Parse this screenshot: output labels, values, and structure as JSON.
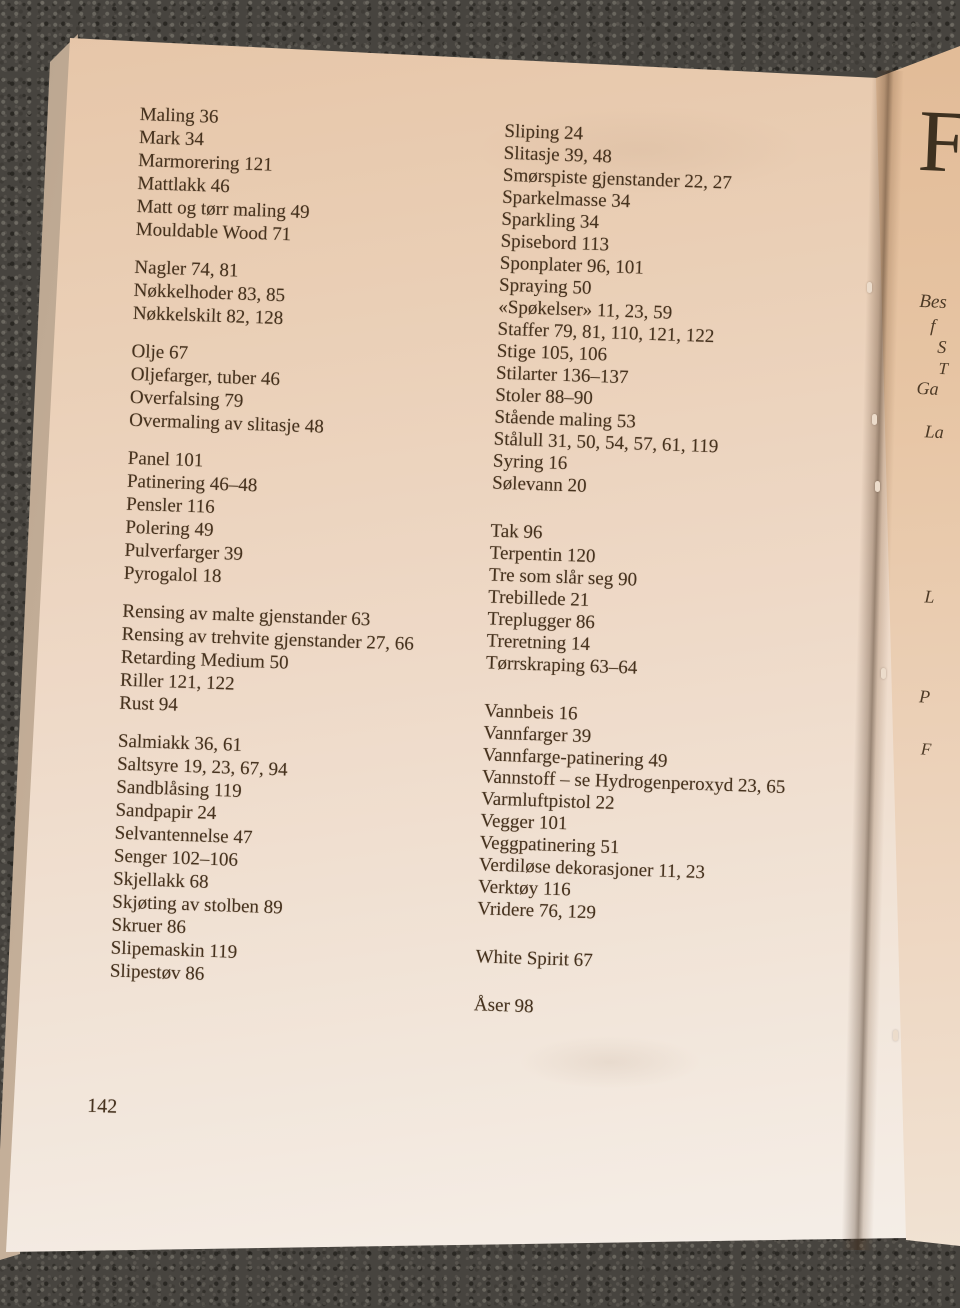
{
  "book_index": {
    "page_number": "142",
    "columns": [
      {
        "groups": [
          {
            "entries": [
              {
                "term": "Maling",
                "pages": "36"
              },
              {
                "term": "Mark",
                "pages": "34"
              },
              {
                "term": "Marmorering",
                "pages": "121"
              },
              {
                "term": "Mattlakk",
                "pages": "46"
              },
              {
                "term": "Matt og tørr maling",
                "pages": "49"
              },
              {
                "term": "Mouldable Wood",
                "pages": "71"
              }
            ]
          },
          {
            "entries": [
              {
                "term": "Nagler",
                "pages": "74, 81"
              },
              {
                "term": "Nøkkelhoder",
                "pages": "83, 85"
              },
              {
                "term": "Nøkkelskilt",
                "pages": "82, 128"
              }
            ]
          },
          {
            "entries": [
              {
                "term": "Olje",
                "pages": "67"
              },
              {
                "term": "Oljefarger, tuber",
                "pages": "46"
              },
              {
                "term": "Overfalsing",
                "pages": "79"
              },
              {
                "term": "Overmaling av slitasje",
                "pages": "48"
              }
            ]
          },
          {
            "entries": [
              {
                "term": "Panel",
                "pages": "101"
              },
              {
                "term": "Patinering",
                "pages": "46–48"
              },
              {
                "term": "Pensler",
                "pages": "116"
              },
              {
                "term": "Polering",
                "pages": "49"
              },
              {
                "term": "Pulverfarger",
                "pages": "39"
              },
              {
                "term": "Pyrogalol",
                "pages": "18"
              }
            ]
          },
          {
            "entries": [
              {
                "term": "Rensing av malte gjenstander",
                "pages": "63"
              },
              {
                "term": "Rensing av trehvite gjenstander",
                "pages": "27, 66"
              },
              {
                "term": "Retarding Medium",
                "pages": "50"
              },
              {
                "term": "Riller",
                "pages": "121, 122"
              },
              {
                "term": "Rust",
                "pages": "94"
              }
            ]
          },
          {
            "entries": [
              {
                "term": "Salmiakk",
                "pages": "36, 61"
              },
              {
                "term": "Saltsyre",
                "pages": "19, 23, 67, 94"
              },
              {
                "term": "Sandblåsing",
                "pages": "119"
              },
              {
                "term": "Sandpapir",
                "pages": "24"
              },
              {
                "term": "Selvantennelse",
                "pages": "47"
              },
              {
                "term": "Senger",
                "pages": "102–106"
              },
              {
                "term": "Skjellakk",
                "pages": "68"
              },
              {
                "term": "Skjøting av stolben",
                "pages": "89"
              },
              {
                "term": "Skruer",
                "pages": "86"
              },
              {
                "term": "Slipemaskin",
                "pages": "119"
              },
              {
                "term": "Slipestøv",
                "pages": "86"
              }
            ]
          }
        ]
      },
      {
        "groups": [
          {
            "entries": [
              {
                "term": "Sliping",
                "pages": "24"
              },
              {
                "term": "Slitasje",
                "pages": "39, 48"
              },
              {
                "term": "Smørspiste gjenstander",
                "pages": "22, 27"
              },
              {
                "term": "Sparkelmasse",
                "pages": "34"
              },
              {
                "term": "Sparkling",
                "pages": "34"
              },
              {
                "term": "Spisebord",
                "pages": "113"
              },
              {
                "term": "Sponplater",
                "pages": "96, 101"
              },
              {
                "term": "Spraying",
                "pages": "50"
              },
              {
                "term": "«Spøkelser»",
                "pages": "11, 23, 59"
              },
              {
                "term": "Staffer",
                "pages": "79, 81, 110, 121, 122"
              },
              {
                "term": "Stige",
                "pages": "105, 106"
              },
              {
                "term": "Stilarter",
                "pages": "136–137"
              },
              {
                "term": "Stoler",
                "pages": "88–90"
              },
              {
                "term": "Stående maling",
                "pages": "53"
              },
              {
                "term": "Stålull",
                "pages": "31, 50, 54, 57, 61, 119"
              },
              {
                "term": "Syring",
                "pages": "16"
              },
              {
                "term": "Sølevann",
                "pages": "20"
              }
            ]
          },
          {
            "entries": [
              {
                "term": "Tak",
                "pages": "96"
              },
              {
                "term": "Terpentin",
                "pages": "120"
              },
              {
                "term": "Tre som slår seg",
                "pages": "90"
              },
              {
                "term": "Trebillede",
                "pages": "21"
              },
              {
                "term": "Treplugger",
                "pages": "86"
              },
              {
                "term": "Treretning",
                "pages": "14"
              },
              {
                "term": "Tørrskraping",
                "pages": "63–64"
              }
            ]
          },
          {
            "entries": [
              {
                "term": "Vannbeis",
                "pages": "16"
              },
              {
                "term": "Vannfarger",
                "pages": "39"
              },
              {
                "term": "Vannfarge-patinering",
                "pages": "49"
              },
              {
                "term": "Vannstoff – se Hydrogenperoxyd",
                "pages": "23, 65"
              },
              {
                "term": "Varmluftpistol",
                "pages": "22"
              },
              {
                "term": "Vegger",
                "pages": "101"
              },
              {
                "term": "Veggpatinering",
                "pages": "51"
              },
              {
                "term": "Verdiløse dekorasjoner",
                "pages": "11, 23"
              },
              {
                "term": "Verktøy",
                "pages": "116"
              },
              {
                "term": "Vridere",
                "pages": "76, 129"
              }
            ]
          },
          {
            "entries": [
              {
                "term": "White Spirit",
                "pages": "67"
              }
            ]
          },
          {
            "entries": [
              {
                "term": "Åser",
                "pages": "98"
              }
            ]
          }
        ]
      }
    ]
  },
  "next_page": {
    "heading_fragment": "F",
    "text_fragments": [
      "Bes",
      "f",
      "S",
      "T",
      "Ga",
      "La",
      "L",
      "P",
      "F"
    ]
  }
}
